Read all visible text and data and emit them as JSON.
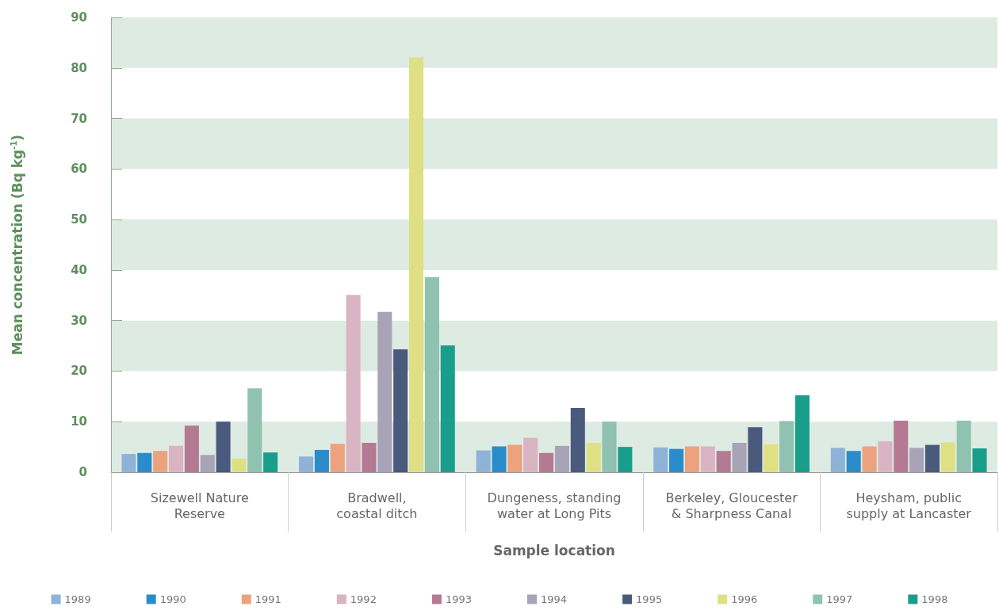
{
  "chart_data": {
    "type": "bar",
    "xlabel": "Sample location",
    "ylabel": "Mean concentration (Bq kg$^{-1}$)",
    "categories": [
      "Sizewell Nature\nReserve",
      "Bradwell,\ncoastal ditch",
      "Dungeness, standing\nwater at Long Pits",
      "Berkeley, Gloucester\n& Sharpness Canal",
      "Heysham, public\nsupply at Lancaster"
    ],
    "series": [
      {
        "name": "1989",
        "color": "#8fb3d6",
        "values": [
          3.6,
          3.1,
          4.3,
          4.9,
          4.8
        ]
      },
      {
        "name": "1990",
        "color": "#2b8ccc",
        "values": [
          3.8,
          4.4,
          5.1,
          4.6,
          4.2
        ]
      },
      {
        "name": "1991",
        "color": "#eda27e",
        "values": [
          4.2,
          5.6,
          5.4,
          5.1,
          5.1
        ]
      },
      {
        "name": "1992",
        "color": "#d9b4c2",
        "values": [
          5.2,
          35.1,
          6.8,
          5.1,
          6.1
        ]
      },
      {
        "name": "1993",
        "color": "#b57a93",
        "values": [
          9.2,
          5.8,
          3.8,
          4.2,
          10.2
        ]
      },
      {
        "name": "1994",
        "color": "#a9a3b8",
        "values": [
          3.4,
          31.7,
          5.2,
          5.8,
          4.8
        ]
      },
      {
        "name": "1995",
        "color": "#4a5a7c",
        "values": [
          10.0,
          24.3,
          12.7,
          8.9,
          5.4
        ]
      },
      {
        "name": "1996",
        "color": "#dfe084",
        "values": [
          2.7,
          82.1,
          5.8,
          5.5,
          5.9
        ]
      },
      {
        "name": "1997",
        "color": "#8fc2b0",
        "values": [
          16.6,
          38.6,
          10.0,
          10.1,
          10.2
        ]
      },
      {
        "name": "1998",
        "color": "#1a9e8c",
        "values": [
          3.9,
          25.1,
          5.0,
          15.2,
          4.7
        ]
      }
    ],
    "ylim": [
      0,
      90
    ],
    "yticks": [
      0,
      10,
      20,
      30,
      40,
      50,
      60,
      70,
      80,
      90
    ],
    "bands": [
      {
        "axis": "y",
        "from": 0,
        "to": 10,
        "color": "#deebe3"
      },
      {
        "axis": "y",
        "from": 20,
        "to": 30,
        "color": "#deebe3"
      },
      {
        "axis": "y",
        "from": 40,
        "to": 50,
        "color": "#deebe3"
      },
      {
        "axis": "y",
        "from": 60,
        "to": 70,
        "color": "#deebe3"
      },
      {
        "axis": "y",
        "from": 80,
        "to": 90,
        "color": "#deebe3"
      }
    ],
    "legend": "bottom"
  }
}
